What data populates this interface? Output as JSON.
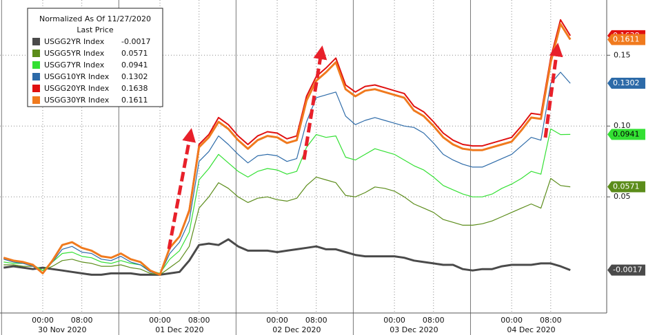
{
  "chart_data": {
    "type": "line",
    "title": "Normalized As Of 11/27/2020",
    "subtitle": "Last Price",
    "categories": [
      null,
      null,
      null,
      null,
      "00:00",
      null,
      null,
      null,
      "08:00",
      null,
      null,
      null,
      null,
      null,
      null,
      null,
      "00:00",
      null,
      null,
      null,
      "08:00",
      null,
      null,
      null,
      null,
      null,
      null,
      null,
      "00:00",
      null,
      null,
      null,
      "08:00",
      null,
      null,
      null,
      null,
      null,
      null,
      null,
      "00:00",
      null,
      null,
      null,
      "08:00",
      null,
      null,
      null,
      null,
      null,
      null,
      null,
      "00:00",
      null,
      null,
      null,
      "08:00",
      null,
      null
    ],
    "dates": [
      null,
      null,
      null,
      null,
      null,
      null,
      "30 Nov 2020",
      null,
      null,
      null,
      null,
      null,
      null,
      null,
      null,
      null,
      null,
      null,
      "01 Dec 2020",
      null,
      null,
      null,
      null,
      null,
      null,
      null,
      null,
      null,
      null,
      null,
      "02 Dec 2020",
      null,
      null,
      null,
      null,
      null,
      null,
      null,
      null,
      null,
      null,
      null,
      "03 Dec 2020",
      null,
      null,
      null,
      null,
      null,
      null,
      null,
      null,
      null,
      null,
      null,
      "04 Dec 2020",
      null,
      null,
      null,
      null
    ],
    "series": [
      {
        "name": "USGG2YR Index",
        "last": -0.0017,
        "color": "#4a4a4a",
        "width": 3,
        "values": [
          0.0,
          0.001,
          0.0,
          -0.001,
          0.0,
          -0.001,
          -0.002,
          -0.003,
          -0.004,
          -0.005,
          -0.005,
          -0.004,
          -0.004,
          -0.004,
          -0.005,
          -0.005,
          -0.005,
          -0.004,
          -0.003,
          0.005,
          0.016,
          0.017,
          0.016,
          0.02,
          0.015,
          0.012,
          0.012,
          0.012,
          0.011,
          0.012,
          0.013,
          0.014,
          0.015,
          0.013,
          0.013,
          0.011,
          0.009,
          0.008,
          0.008,
          0.008,
          0.008,
          0.007,
          0.005,
          0.004,
          0.003,
          0.002,
          0.002,
          -0.001,
          -0.002,
          -0.001,
          -0.001,
          0.001,
          0.002,
          0.002,
          0.002,
          0.003,
          0.003,
          0.001,
          -0.0017
        ]
      },
      {
        "name": "USGG5YR Index",
        "last": 0.0571,
        "color": "#5b8c1a",
        "width": 1.2,
        "values": [
          0.002,
          0.002,
          0.001,
          0.001,
          -0.002,
          0.001,
          0.005,
          0.006,
          0.004,
          0.003,
          0.001,
          0.001,
          0.002,
          0.0,
          -0.001,
          -0.004,
          -0.005,
          0.0,
          0.005,
          0.015,
          0.042,
          0.05,
          0.06,
          0.056,
          0.05,
          0.046,
          0.049,
          0.05,
          0.048,
          0.047,
          0.049,
          0.058,
          0.064,
          0.062,
          0.06,
          0.051,
          0.05,
          0.053,
          0.057,
          0.056,
          0.054,
          0.05,
          0.045,
          0.042,
          0.039,
          0.034,
          0.032,
          0.03,
          0.03,
          0.031,
          0.033,
          0.036,
          0.039,
          0.042,
          0.045,
          0.042,
          0.063,
          0.058,
          0.0571
        ]
      },
      {
        "name": "USGG7YR Index",
        "last": 0.0941,
        "color": "#33e033",
        "width": 1.2,
        "values": [
          0.004,
          0.003,
          0.003,
          0.002,
          -0.002,
          0.004,
          0.01,
          0.011,
          0.008,
          0.007,
          0.004,
          0.003,
          0.005,
          0.003,
          0.002,
          -0.002,
          -0.004,
          0.006,
          0.012,
          0.025,
          0.062,
          0.07,
          0.08,
          0.074,
          0.068,
          0.064,
          0.068,
          0.07,
          0.069,
          0.066,
          0.068,
          0.085,
          0.094,
          0.092,
          0.093,
          0.078,
          0.076,
          0.08,
          0.084,
          0.082,
          0.08,
          0.076,
          0.072,
          0.069,
          0.064,
          0.058,
          0.055,
          0.052,
          0.05,
          0.05,
          0.052,
          0.056,
          0.059,
          0.063,
          0.068,
          0.066,
          0.098,
          0.094,
          0.0941
        ]
      },
      {
        "name": "USGG10YR Index",
        "last": 0.1302,
        "color": "#2c6aa8",
        "width": 1.2,
        "values": [
          0.006,
          0.004,
          0.003,
          0.001,
          -0.004,
          0.004,
          0.013,
          0.015,
          0.011,
          0.01,
          0.006,
          0.005,
          0.008,
          0.004,
          0.002,
          -0.003,
          -0.005,
          0.01,
          0.018,
          0.033,
          0.075,
          0.082,
          0.093,
          0.087,
          0.08,
          0.074,
          0.079,
          0.08,
          0.079,
          0.075,
          0.077,
          0.103,
          0.12,
          0.122,
          0.124,
          0.107,
          0.101,
          0.104,
          0.106,
          0.104,
          0.102,
          0.1,
          0.099,
          0.095,
          0.088,
          0.08,
          0.076,
          0.073,
          0.071,
          0.071,
          0.074,
          0.077,
          0.08,
          0.086,
          0.092,
          0.09,
          0.13,
          0.138,
          0.1302
        ]
      },
      {
        "name": "USGG20YR Index",
        "last": 0.1638,
        "color": "#e01010",
        "width": 2,
        "values": [
          0.007,
          0.005,
          0.004,
          0.002,
          -0.004,
          0.005,
          0.016,
          0.018,
          0.014,
          0.012,
          0.008,
          0.007,
          0.01,
          0.006,
          0.004,
          -0.002,
          -0.005,
          0.014,
          0.022,
          0.041,
          0.087,
          0.094,
          0.106,
          0.101,
          0.093,
          0.087,
          0.093,
          0.096,
          0.095,
          0.091,
          0.093,
          0.121,
          0.135,
          0.141,
          0.148,
          0.129,
          0.124,
          0.128,
          0.129,
          0.127,
          0.125,
          0.123,
          0.114,
          0.11,
          0.103,
          0.095,
          0.09,
          0.087,
          0.086,
          0.086,
          0.088,
          0.09,
          0.092,
          0.1,
          0.109,
          0.108,
          0.148,
          0.175,
          0.1638
        ]
      },
      {
        "name": "USGG30YR Index",
        "last": 0.1611,
        "color": "#f07a1e",
        "width": 3,
        "values": [
          0.007,
          0.005,
          0.004,
          0.002,
          -0.004,
          0.005,
          0.016,
          0.018,
          0.014,
          0.012,
          0.008,
          0.007,
          0.01,
          0.006,
          0.004,
          -0.002,
          -0.005,
          0.014,
          0.022,
          0.04,
          0.085,
          0.092,
          0.103,
          0.098,
          0.09,
          0.084,
          0.09,
          0.093,
          0.092,
          0.088,
          0.09,
          0.118,
          0.132,
          0.138,
          0.145,
          0.126,
          0.121,
          0.125,
          0.126,
          0.124,
          0.122,
          0.12,
          0.111,
          0.107,
          0.1,
          0.092,
          0.087,
          0.084,
          0.083,
          0.083,
          0.085,
          0.087,
          0.089,
          0.097,
          0.106,
          0.105,
          0.145,
          0.172,
          0.1611
        ]
      }
    ],
    "ylim": [
      -0.032,
      0.189
    ],
    "yticks": [
      {
        "value": 0.05,
        "label": "0.05"
      },
      {
        "value": 0.1,
        "label": "0.10"
      },
      {
        "value": 0.15,
        "label": "0.15"
      }
    ],
    "grid": true
  }
}
